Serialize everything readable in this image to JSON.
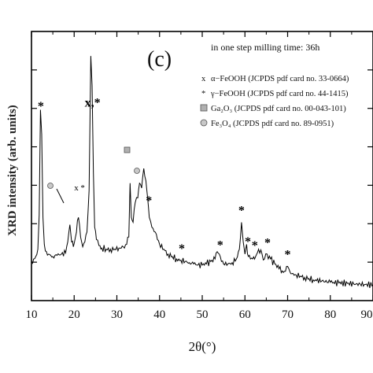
{
  "chart_data": {
    "type": "line",
    "xlabel": "2θ(°)",
    "ylabel": "XRD intensity (arb. units)",
    "panel_label": "(c)",
    "note": "in one step milling time: 36h",
    "xlim": [
      10,
      90
    ],
    "x_ticks": [
      "10",
      "20",
      "30",
      "40",
      "50",
      "60",
      "70",
      "80",
      "90"
    ],
    "y_ticks_labeled": false,
    "legend_placement": "top-right",
    "legend": [
      {
        "symbol": "x",
        "label": "α−FeOOH (JCPDS pdf card no. 33-0664)"
      },
      {
        "symbol": "*",
        "label": "γ−FeOOH (JCPDS pdf card no. 44-1415)"
      },
      {
        "symbol": "square",
        "label": "Ga₂O₃ (JCPDS pdf card no. 00-043-101)"
      },
      {
        "symbol": "circle",
        "label": "Fe₃O₄ (JCPDS pdf card no. 89-0951)"
      }
    ],
    "series": [
      {
        "x": [
          10,
          10.5,
          11,
          11.5,
          11.8,
          12.1,
          12.4,
          12.7,
          13.0,
          13.5,
          14,
          15,
          16,
          17,
          18,
          18.5,
          19.0,
          19.4,
          19.8,
          20.3,
          21.0,
          21.5,
          22,
          22.5,
          23,
          23.5,
          23.9,
          24.2,
          24.5,
          24.8,
          25.2,
          25.8,
          26.5,
          27.5,
          28.5,
          29.5,
          30.5,
          31.5,
          32.3,
          32.8,
          33.1,
          33.4,
          33.8,
          34.3,
          34.9,
          35.3,
          35.8,
          36.3,
          36.8,
          37.2,
          37.6,
          38.2,
          39,
          40,
          41,
          42,
          43,
          44,
          45,
          46,
          47,
          48,
          49,
          50,
          51,
          52,
          53,
          53.5,
          54,
          54.5,
          55,
          56,
          57,
          58,
          58.7,
          59.2,
          59.6,
          60.0,
          60.4,
          60.8,
          61.3,
          61.8,
          62.5,
          63.2,
          64.0,
          64.6,
          65.2,
          66,
          67,
          68,
          69,
          69.5,
          70,
          70.5,
          71,
          72,
          73,
          74,
          75,
          76,
          78,
          80,
          82,
          84,
          86,
          88,
          90
        ],
        "y": [
          16,
          17,
          18,
          21,
          35,
          78,
          68,
          34,
          23,
          20,
          19,
          18,
          18.5,
          19,
          19.5,
          24,
          31,
          24,
          22,
          26,
          34,
          26,
          22,
          24,
          28,
          45,
          100,
          88,
          52,
          30,
          25,
          22.5,
          21.5,
          21,
          21,
          21,
          21.5,
          22,
          23,
          26,
          48,
          34,
          32,
          40,
          42,
          48,
          46,
          54,
          49,
          42,
          34,
          30,
          28,
          23,
          21,
          19,
          18,
          17,
          16.5,
          16,
          15.5,
          15,
          14.5,
          14.5,
          15,
          16,
          17,
          20,
          19,
          16,
          15,
          15,
          15.5,
          17,
          21,
          32,
          24,
          19,
          23,
          18,
          17,
          17,
          18,
          21,
          19,
          17,
          19,
          17,
          15,
          13,
          11.5,
          12,
          14,
          12,
          11,
          10.5,
          10,
          9.5,
          9,
          8.5,
          8,
          7.5,
          7.2,
          7,
          6.8,
          6.6,
          6.5
        ]
      }
    ],
    "peak_annotations": [
      {
        "label": "*",
        "x": 12.2
      },
      {
        "label": "x,*",
        "x": 24.3
      },
      {
        "label": "*",
        "x": 37.5
      },
      {
        "label": "*",
        "x": 45.2
      },
      {
        "label": "*",
        "x": 54.2
      },
      {
        "label": "*",
        "x": 59.2
      },
      {
        "label": "*",
        "x": 60.7
      },
      {
        "label": "*",
        "x": 62.3
      },
      {
        "label": "*",
        "x": 65.3
      },
      {
        "label": "*",
        "x": 70.0
      },
      {
        "label": "x",
        "x": 20.5
      },
      {
        "label": "*",
        "x": 22.0
      }
    ],
    "colors": {
      "line": "#000000",
      "axes": "#000000",
      "background": "#ffffff"
    }
  }
}
